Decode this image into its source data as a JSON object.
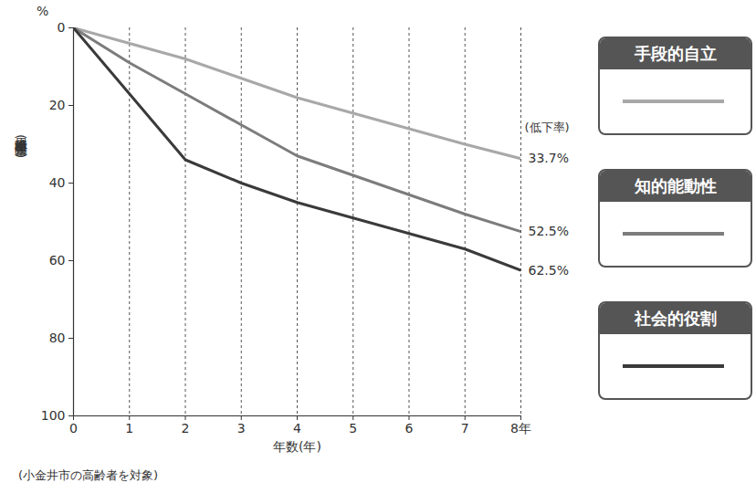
{
  "chart_data": {
    "type": "line",
    "ylabel": "累積障害発生率(%)",
    "xlabel": "年数(年)",
    "caption": "(小金井市の高齢者を対象)",
    "annotations": [
      "%",
      "(低下率)"
    ],
    "x": [
      0,
      1,
      2,
      3,
      4,
      5,
      6,
      7,
      8
    ],
    "series": [
      {
        "name": "手段的自立",
        "color": "#a8a8a8",
        "values": [
          0,
          4,
          8,
          13,
          18,
          22,
          26,
          30,
          33.7
        ],
        "value_labels": [
          null,
          null,
          null,
          null,
          null,
          null,
          null,
          null,
          "33.7%"
        ]
      },
      {
        "name": "知的能動性",
        "color": "#7c7c7c",
        "values": [
          0,
          9,
          17,
          25,
          33,
          38,
          43,
          48,
          52.5
        ],
        "value_labels": [
          null,
          null,
          null,
          null,
          null,
          null,
          null,
          null,
          "52.5%"
        ]
      },
      {
        "name": "社会的役割",
        "color": "#3a3a3a",
        "values": [
          0,
          17,
          34,
          40,
          45,
          49,
          53,
          57,
          62.5
        ],
        "value_labels": [
          null,
          null,
          null,
          null,
          null,
          null,
          null,
          null,
          "62.5%"
        ]
      }
    ],
    "xlim": [
      0,
      8
    ],
    "xticks": [
      0,
      1,
      2,
      3,
      4,
      5,
      6,
      7,
      {
        "value": 8,
        "label": "8年"
      }
    ],
    "ylim": [
      0,
      100
    ],
    "yticks": [
      0,
      20,
      40,
      60,
      80,
      100
    ],
    "grid": "x",
    "legend": "right"
  }
}
